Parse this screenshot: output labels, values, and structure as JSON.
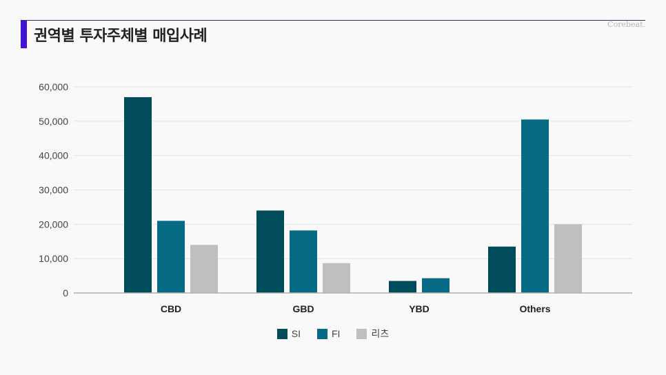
{
  "title": "권역별 투자주체별 매입사례",
  "brand": "Corebeat.",
  "colors": {
    "SI": "#004c5a",
    "FI": "#076b85",
    "리츠": "#bfbfbf",
    "accent": "#4414d6"
  },
  "chart_data": {
    "type": "bar",
    "title": "권역별 투자주체별 매입사례",
    "categories": [
      "CBD",
      "GBD",
      "YBD",
      "Others"
    ],
    "series": [
      {
        "name": "SI",
        "values": [
          57000,
          24000,
          3500,
          13500
        ]
      },
      {
        "name": "FI",
        "values": [
          21000,
          18200,
          4300,
          50500
        ]
      },
      {
        "name": "리츠",
        "values": [
          14000,
          8700,
          0,
          20000
        ]
      }
    ],
    "xlabel": "",
    "ylabel": "",
    "ylim": [
      0,
      60000
    ],
    "yticks": [
      "0",
      "10,000",
      "20,000",
      "30,000",
      "40,000",
      "50,000",
      "60,000"
    ],
    "grid": true,
    "legend_position": "bottom"
  }
}
